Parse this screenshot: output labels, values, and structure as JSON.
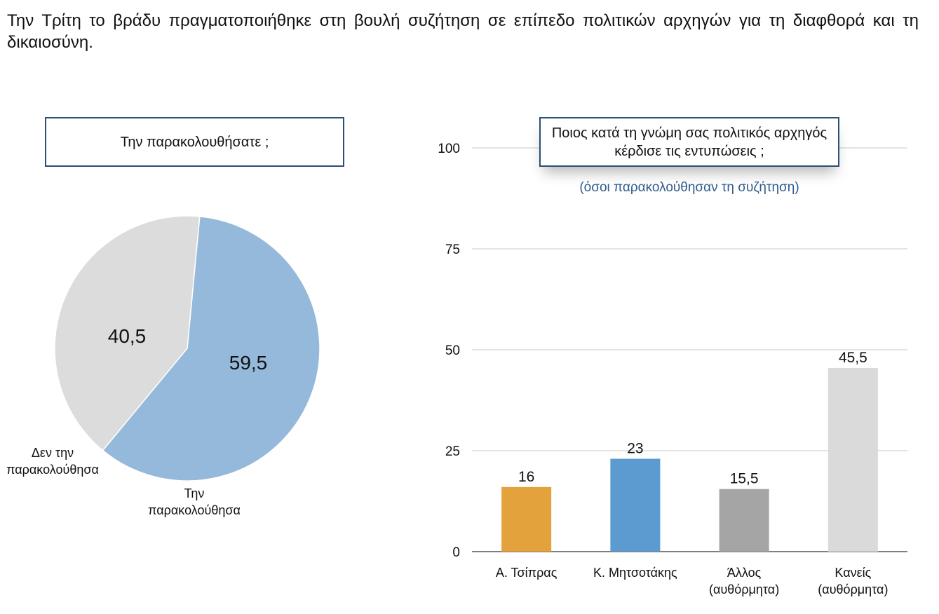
{
  "intro_text": "Την Τρίτη το βράδυ πραγματοποιήθηκε στη βουλή συζήτηση σε επίπεδο πολιτικών αρχηγών για τη διαφθορά και τη δικαιοσύνη.",
  "colors": {
    "pie_watched": "#95b9da",
    "pie_not_watched": "#dcdcdc",
    "box_border": "#2c4f72",
    "subtitle": "#2e5b8c",
    "gridline": "#c8c8c8"
  },
  "chart_data": [
    {
      "type": "pie",
      "title": "Την παρακολουθήσατε ;",
      "slices": [
        {
          "label_lines": [
            "Την",
            "παρακολούθησα"
          ],
          "value": 59.5,
          "value_label": "59,5",
          "color": "#95b9da"
        },
        {
          "label_lines": [
            "Δεν την",
            "παρακολούθησα"
          ],
          "value": 40.5,
          "value_label": "40,5",
          "color": "#dcdcdc"
        }
      ]
    },
    {
      "type": "bar",
      "title": "Ποιος κατά τη γνώμη σας πολιτικός αρχηγός κέρδισε τις εντυπώσεις ;",
      "subtitle": "(όσοι παρακολούθησαν τη συζήτηση)",
      "categories": [
        [
          "Α. Τσίπρας"
        ],
        [
          "Κ. Μητσοτάκης"
        ],
        [
          "Άλλος",
          "(αυθόρμητα)"
        ],
        [
          "Κανείς",
          "(αυθόρμητα)"
        ]
      ],
      "values": [
        16,
        23,
        15.5,
        45.5
      ],
      "value_labels": [
        "16",
        "23",
        "15,5",
        "45,5"
      ],
      "bar_colors": [
        "#e4a23c",
        "#5b9bd0",
        "#a5a5a5",
        "#dadada"
      ],
      "ylim": [
        0,
        100
      ],
      "yticks": [
        0,
        25,
        50,
        75,
        100
      ],
      "grid": true
    }
  ]
}
